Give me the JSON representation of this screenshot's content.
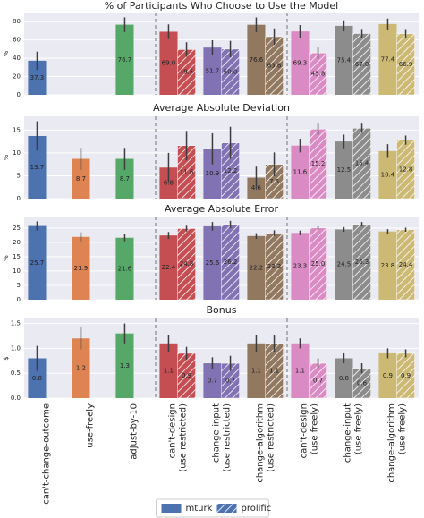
{
  "chart_data": [
    {
      "type": "bar",
      "title": "% of Participants Who Choose to Use the Model",
      "ylabel": "%",
      "ylim": [
        0,
        90
      ],
      "yticks": [
        0,
        20,
        40,
        60,
        80
      ],
      "grid": true,
      "series": [
        {
          "values": [
            37.3,
            null,
            76.7,
            69.0,
            51.7,
            76.6,
            69.3,
            75.4,
            77.4
          ],
          "value_labels": [
            "37.3",
            null,
            "76.7",
            "69.0",
            "51.7",
            "76.6",
            "69.3",
            "75.4",
            "77.4"
          ],
          "errors": [
            10,
            null,
            8,
            8,
            8,
            8,
            7,
            6,
            6
          ]
        },
        {
          "values": [
            null,
            null,
            null,
            49.5,
            50.0,
            63.6,
            45.8,
            67.0,
            66.9
          ],
          "value_labels": [
            null,
            null,
            null,
            "49.5",
            "50.0",
            "63.6",
            "45.8",
            "67.0",
            "66.9"
          ],
          "errors": [
            null,
            null,
            null,
            8,
            9,
            9,
            6,
            5,
            5
          ]
        }
      ]
    },
    {
      "type": "bar",
      "title": "Average Absolute Deviation",
      "ylabel": "%",
      "ylim": [
        0,
        18
      ],
      "yticks": [
        0,
        5,
        10,
        15
      ],
      "grid": true,
      "series": [
        {
          "values": [
            13.7,
            8.7,
            8.7,
            6.8,
            10.9,
            4.6,
            11.6,
            12.5,
            10.4
          ],
          "errors": [
            3.2,
            2.4,
            2.4,
            3.2,
            3.4,
            2.4,
            1.5,
            1.5,
            1.5
          ]
        },
        {
          "values": [
            null,
            null,
            null,
            11.6,
            12.2,
            7.5,
            15.2,
            15.4,
            12.8
          ],
          "errors": [
            null,
            null,
            null,
            3.2,
            3.5,
            2.6,
            1.2,
            1.0,
            1.0
          ]
        }
      ]
    },
    {
      "type": "bar",
      "title": "Average Absolute Error",
      "ylabel": "%",
      "ylim": [
        0,
        29
      ],
      "yticks": [
        0,
        5,
        10,
        15,
        20,
        25
      ],
      "grid": true,
      "series": [
        {
          "values": [
            25.7,
            21.9,
            21.6,
            22.4,
            25.6,
            22.2,
            23.3,
            24.5,
            23.8
          ],
          "errors": [
            1.6,
            1.6,
            1.2,
            1.2,
            1.5,
            1.0,
            0.8,
            0.8,
            0.8
          ]
        },
        {
          "values": [
            null,
            null,
            null,
            24.8,
            26.2,
            23.2,
            25.0,
            26.3,
            24.4
          ],
          "value_labels": [
            null,
            null,
            null,
            "24.8",
            "26.2",
            "23.2",
            "25.0",
            "26.3",
            "24.4"
          ],
          "errors": [
            null,
            null,
            null,
            1.0,
            1.3,
            1.0,
            0.6,
            0.8,
            0.7
          ]
        }
      ]
    },
    {
      "type": "bar",
      "title": "Bonus",
      "ylabel": "$",
      "ylim": [
        0,
        1.6
      ],
      "yticks": [
        {
          "value": 0,
          "label": "0.0"
        },
        0.5,
        {
          "value": 1,
          "label": "1.0"
        },
        1.5
      ],
      "grid": true,
      "categories": [
        [
          "can't-change-outcome"
        ],
        [
          "use-freely"
        ],
        [
          "adjust-by-10"
        ],
        [
          "can't-design",
          "(use restricted)"
        ],
        [
          "change-input",
          "(use restricted)"
        ],
        [
          "change-algorithm",
          "(use restricted)"
        ],
        [
          "can't-design",
          "(use freely)"
        ],
        [
          "change-input",
          "(use freely)"
        ],
        [
          "change-algorithm",
          "(use freely)"
        ]
      ],
      "colors": [
        "#4c72b0",
        "#dd8452",
        "#55a868",
        "#c44e52",
        "#8172b3",
        "#937860",
        "#da8bc3",
        "#8c8c8c",
        "#ccb974"
      ],
      "legend": "lower center",
      "series": [
        {
          "name": "mturk",
          "color": "#4c72b0",
          "hatch": false,
          "values": [
            0.8,
            1.2,
            1.3,
            1.1,
            0.7,
            1.1,
            1.1,
            0.8,
            0.9
          ],
          "errors": [
            0.25,
            0.22,
            0.2,
            0.17,
            0.12,
            0.17,
            0.1,
            0.1,
            0.1
          ]
        },
        {
          "name": "prolific",
          "color": "#4c72b0",
          "hatch": true,
          "values": [
            null,
            null,
            null,
            0.9,
            0.7,
            1.1,
            0.7,
            0.6,
            0.9
          ],
          "errors": [
            null,
            null,
            null,
            0.13,
            0.15,
            0.17,
            0.1,
            0.1,
            0.08
          ]
        }
      ]
    }
  ]
}
